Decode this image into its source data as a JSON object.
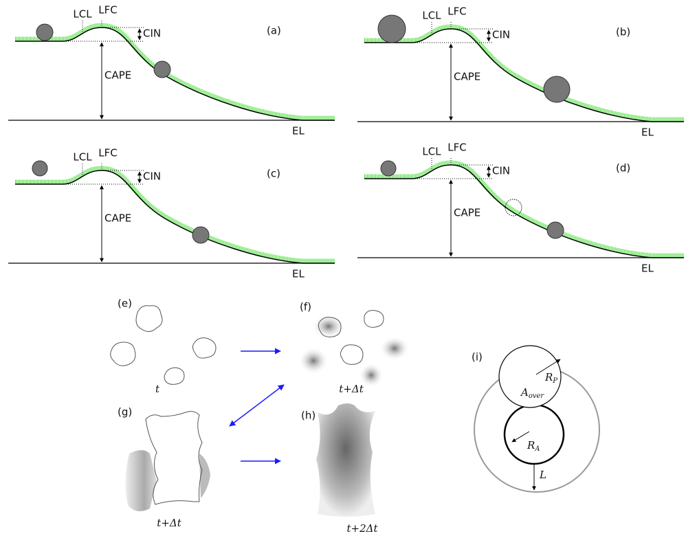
{
  "panels": [
    {
      "label": "(a)",
      "lcl": "LCL",
      "lfc": "LFC",
      "cin": "CIN",
      "cape": "CAPE",
      "el": "EL"
    },
    {
      "label": "(b)",
      "lcl": "LCL",
      "lfc": "LFC",
      "cin": "CIN",
      "cape": "CAPE",
      "el": "EL"
    },
    {
      "label": "(c)",
      "lcl": "LCL",
      "lfc": "LFC",
      "cin": "CIN",
      "cape": "CAPE",
      "el": "EL"
    },
    {
      "label": "(d)",
      "lcl": "LCL",
      "lfc": "LFC",
      "cin": "CIN",
      "cape": "CAPE",
      "el": "EL"
    }
  ],
  "clouds": [
    {
      "label": "(e)",
      "time": "t"
    },
    {
      "label": "(f)",
      "time": "t+Δt"
    },
    {
      "label": "(g)",
      "time": "t+Δt"
    },
    {
      "label": "(h)",
      "time": "t+2Δt"
    }
  ],
  "overlap": {
    "label": "(i)",
    "r_p": {
      "base": "R",
      "sub": "P"
    },
    "a_over": {
      "base": "A",
      "sub": "over"
    },
    "r_a": {
      "base": "R",
      "sub": "A"
    },
    "l": "L"
  }
}
